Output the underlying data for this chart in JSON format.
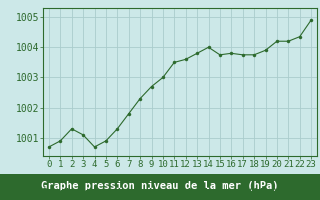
{
  "x": [
    0,
    1,
    2,
    3,
    4,
    5,
    6,
    7,
    8,
    9,
    10,
    11,
    12,
    13,
    14,
    15,
    16,
    17,
    18,
    19,
    20,
    21,
    22,
    23
  ],
  "y": [
    1000.7,
    1000.9,
    1001.3,
    1001.1,
    1000.7,
    1000.9,
    1001.3,
    1001.8,
    1002.3,
    1002.7,
    1003.0,
    1003.5,
    1003.6,
    1003.8,
    1004.0,
    1003.75,
    1003.8,
    1003.75,
    1003.75,
    1003.9,
    1004.2,
    1004.2,
    1004.35,
    1004.9
  ],
  "line_color": "#2d6a2d",
  "marker_color": "#2d6a2d",
  "bg_color": "#cce8e8",
  "plot_bg_color": "#cce8e8",
  "grid_color": "#aacccc",
  "title": "Graphe pression niveau de la mer (hPa)",
  "bottom_bar_color": "#2d6a2d",
  "yticks": [
    1001,
    1002,
    1003,
    1004,
    1005
  ],
  "ylim": [
    1000.4,
    1005.3
  ],
  "xlim": [
    -0.5,
    23.5
  ],
  "xticks": [
    0,
    1,
    2,
    3,
    4,
    5,
    6,
    7,
    8,
    9,
    10,
    11,
    12,
    13,
    14,
    15,
    16,
    17,
    18,
    19,
    20,
    21,
    22,
    23
  ],
  "title_fontsize": 7.5,
  "tick_fontsize": 6.5,
  "ytick_fontsize": 7.0,
  "border_color": "#2d6a2d"
}
